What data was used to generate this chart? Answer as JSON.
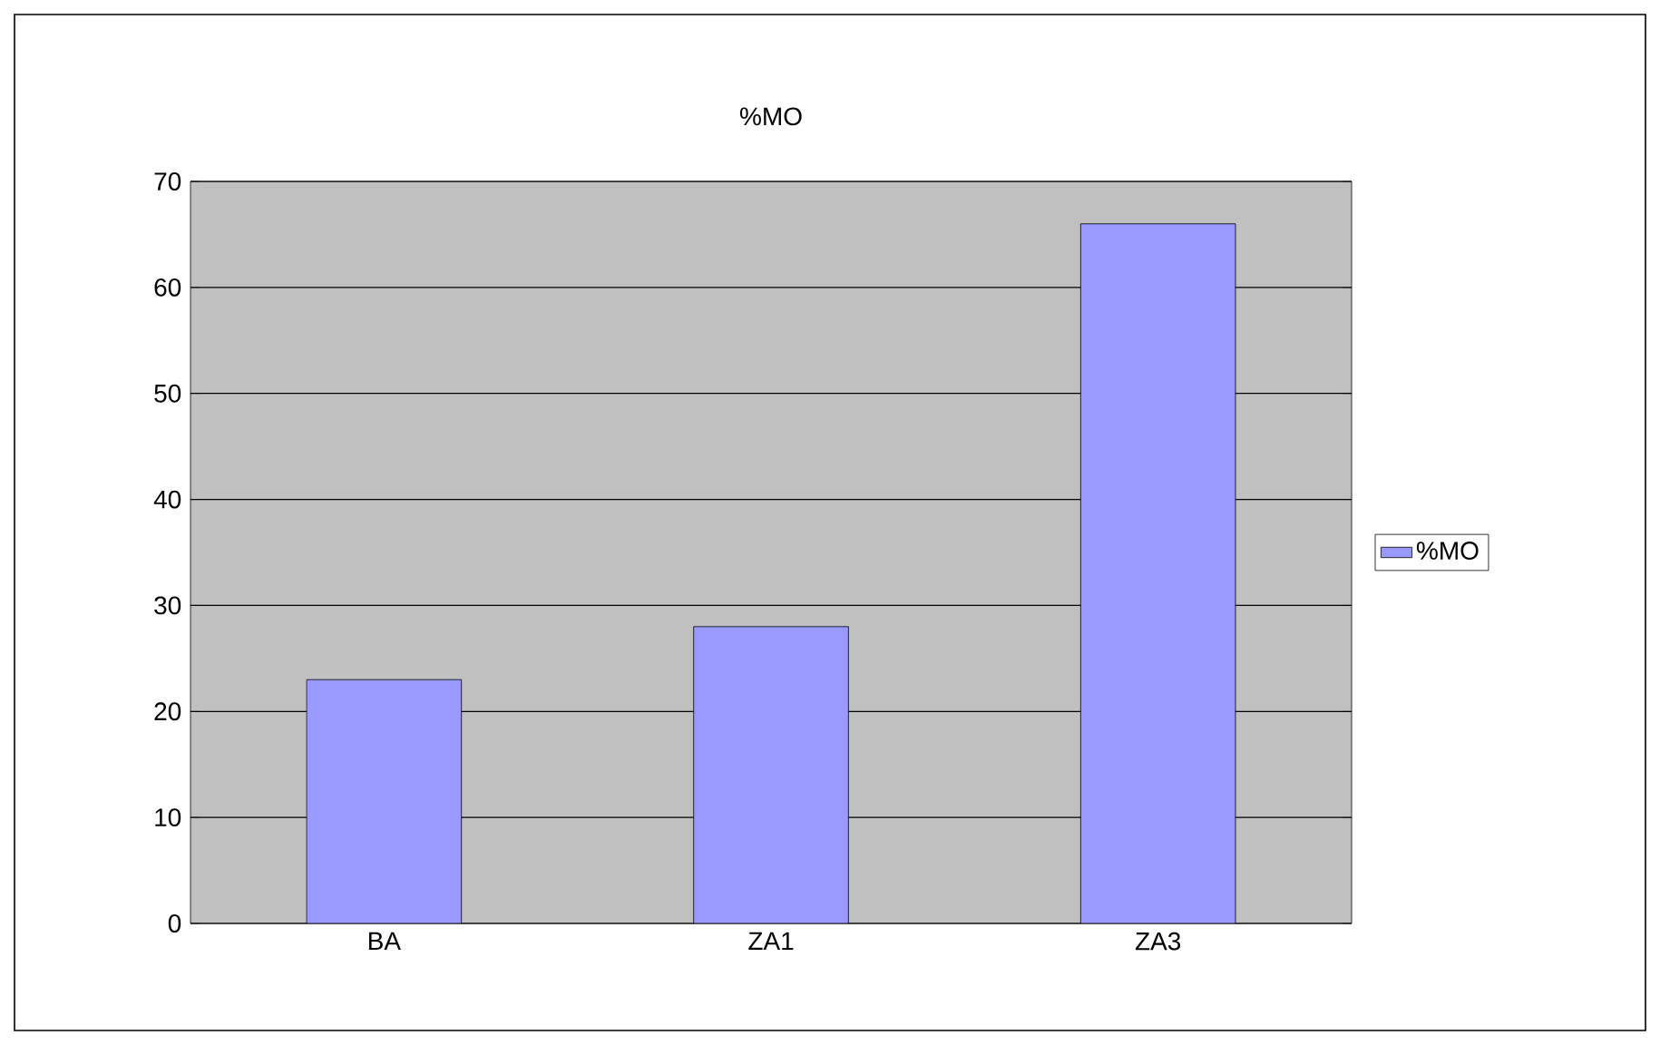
{
  "chart_data": {
    "type": "bar",
    "title": "%MO",
    "categories": [
      "BA",
      "ZA1",
      "ZA3"
    ],
    "series": [
      {
        "name": "%MO",
        "color": "#9999ff",
        "values": [
          23,
          28,
          66
        ]
      }
    ],
    "ylim": [
      0,
      70
    ],
    "yticks": [
      0,
      10,
      20,
      30,
      40,
      50,
      60,
      70
    ],
    "grid": "y",
    "legend": "right"
  }
}
